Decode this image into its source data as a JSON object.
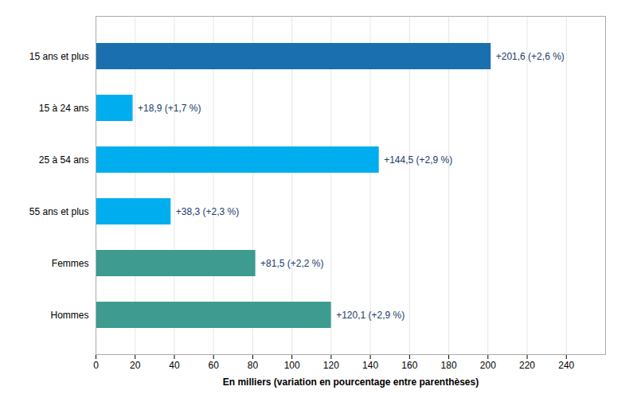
{
  "chart_data": {
    "type": "bar",
    "orientation": "horizontal",
    "categories": [
      "15 ans et plus",
      "15 à 24 ans",
      "25 à 54 ans",
      "55 ans et plus",
      "Femmes",
      "Hommes"
    ],
    "values": [
      201.6,
      18.9,
      144.5,
      38.3,
      81.5,
      120.1
    ],
    "value_labels": [
      "+201,6 (+2,6 %)",
      "+18,9 (+1,7 %)",
      "+144,5 (+2,9 %)",
      "+38,3 (+2,3 %)",
      "+81,5 (+2,2 %)",
      "+120,1 (+2,9 %)"
    ],
    "colors": [
      "#1a6faf",
      "#00aeef",
      "#00aeef",
      "#00aeef",
      "#3d9b8f",
      "#3d9b8f"
    ],
    "data_labels": true,
    "xlabel": "En milliers (variation en pourcentage entre parenthèses)",
    "xlim": [
      0,
      260
    ],
    "xticks": [
      0,
      20,
      40,
      60,
      80,
      100,
      120,
      140,
      160,
      180,
      200,
      220,
      240
    ],
    "grid": true
  }
}
